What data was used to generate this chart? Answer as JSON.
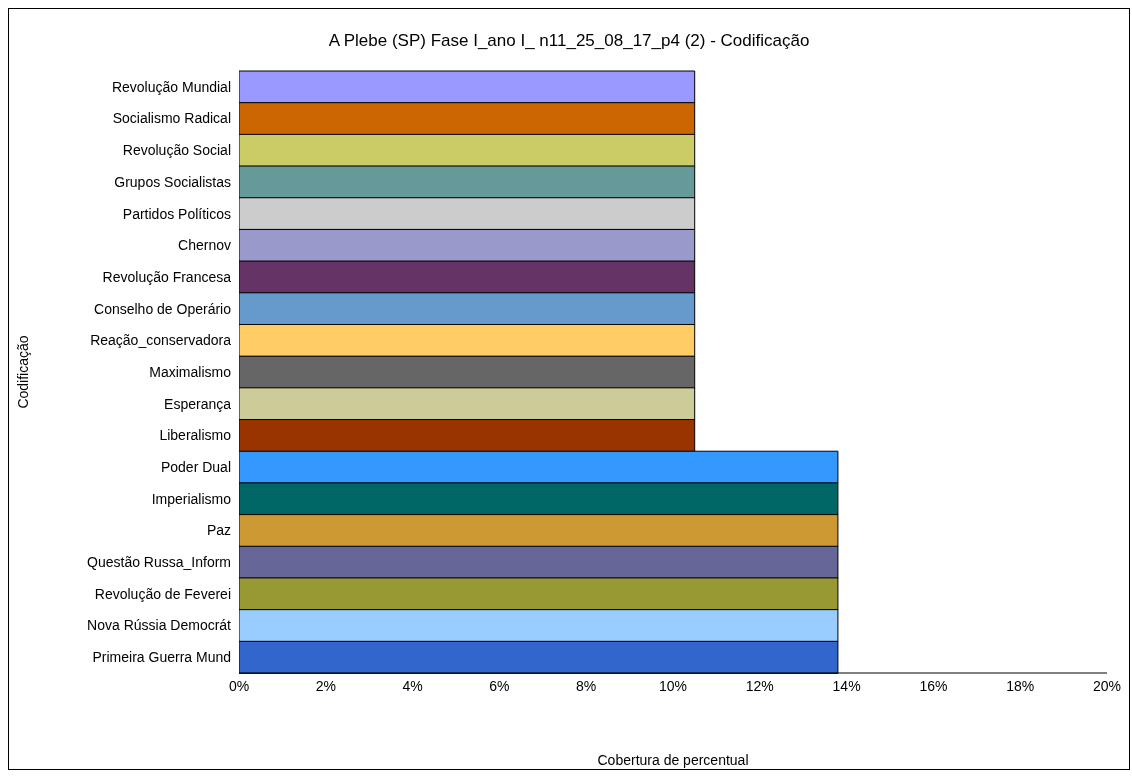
{
  "chart_data": {
    "type": "bar",
    "orientation": "horizontal",
    "title": "A Plebe (SP) Fase I_ano I_ n11_25_08_17_p4 (2) - Codificação",
    "xlabel": "Cobertura de percentual",
    "ylabel": "Codificação",
    "categories": [
      "Revolução Mundial",
      "Socialismo Radical",
      "Revolução Social",
      "Grupos Socialistas",
      "Partidos Políticos",
      "Chernov",
      "Revolução Francesa",
      "Conselho de Operário",
      "Reação_conservadora",
      "Maximalismo",
      "Esperança",
      "Liberalismo",
      "Poder Dual",
      "Imperialismo",
      "Paz",
      "Questão Russa_Inform",
      "Revolução de Feverei",
      "Nova Rússia Democrát",
      "Primeira Guerra Mund"
    ],
    "values": [
      10.5,
      10.5,
      10.5,
      10.5,
      10.5,
      10.5,
      10.5,
      10.5,
      10.5,
      10.5,
      10.5,
      10.5,
      13.8,
      13.8,
      13.8,
      13.8,
      13.8,
      13.8,
      13.8
    ],
    "colors": [
      "#9999ff",
      "#cc6600",
      "#cccc66",
      "#669999",
      "#cccccc",
      "#9999cc",
      "#663366",
      "#6699cc",
      "#ffcc66",
      "#666666",
      "#cccc99",
      "#993300",
      "#3399ff",
      "#006666",
      "#cc9933",
      "#666699",
      "#999933",
      "#99ccff",
      "#3366cc"
    ],
    "xlim": [
      0,
      20
    ],
    "xticks": [
      {
        "value": 0,
        "label": "0%"
      },
      {
        "value": 2,
        "label": "2%"
      },
      {
        "value": 4,
        "label": "4%"
      },
      {
        "value": 6,
        "label": "6%"
      },
      {
        "value": 8,
        "label": "8%"
      },
      {
        "value": 10,
        "label": "10%"
      },
      {
        "value": 12,
        "label": "12%"
      },
      {
        "value": 14,
        "label": "14%"
      },
      {
        "value": 16,
        "label": "16%"
      },
      {
        "value": 18,
        "label": "18%"
      },
      {
        "value": 20,
        "label": "20%"
      }
    ]
  }
}
